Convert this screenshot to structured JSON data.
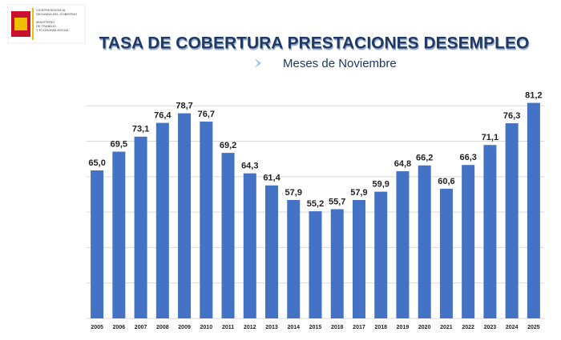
{
  "logo": {
    "lines": [
      "VICEPRESIDENCIA",
      "SEGUNDA DEL GOBIERNO",
      "MINISTERIO",
      "DE TRABAJO",
      "Y ECONOMÍA SOCIAL"
    ]
  },
  "chart_data": {
    "type": "bar",
    "title": "TASA DE COBERTURA PRESTACIONES DESEMPLEO",
    "subtitle": "Meses de Noviembre",
    "categories": [
      "2005",
      "2006",
      "2007",
      "2008",
      "2009",
      "2010",
      "2011",
      "2012",
      "2013",
      "2014",
      "2015",
      "2016",
      "2017",
      "2018",
      "2019",
      "2020",
      "2021",
      "2022",
      "2023",
      "2024",
      "2025"
    ],
    "values": [
      65.0,
      69.5,
      73.1,
      76.4,
      78.7,
      76.7,
      69.2,
      64.3,
      61.4,
      57.9,
      55.2,
      55.7,
      57.9,
      59.9,
      64.8,
      66.2,
      60.6,
      66.3,
      71.1,
      76.3,
      81.2
    ],
    "value_labels": [
      "65,0",
      "69,5",
      "73,1",
      "76,4",
      "78,7",
      "76,7",
      "69,2",
      "64,3",
      "61,4",
      "57,9",
      "55,2",
      "55,7",
      "57,9",
      "59,9",
      "64,8",
      "66,2",
      "60,6",
      "66,3",
      "71,1",
      "76,3",
      "81,2"
    ],
    "color": "#4472c4",
    "ylim": [
      29.5,
      84
    ],
    "yticks": [
      29.5,
      38,
      46.5,
      55,
      63.5,
      72,
      80.5
    ],
    "grid": true
  }
}
